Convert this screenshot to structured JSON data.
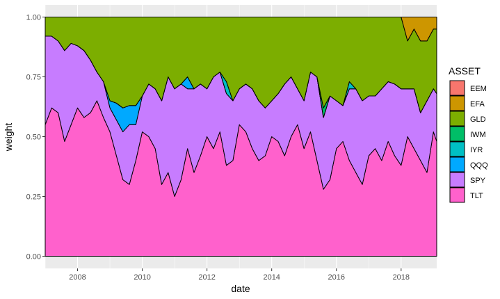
{
  "chart_data": {
    "type": "area",
    "stacked": true,
    "xlabel": "date",
    "ylabel": "weight",
    "xlim": [
      2007.0,
      2019.1
    ],
    "ylim": [
      0,
      1
    ],
    "x_ticks": [
      2008,
      2010,
      2012,
      2014,
      2016,
      2018
    ],
    "x_tick_labels": [
      "2008",
      "2010",
      "2012",
      "2014",
      "2016",
      "2018"
    ],
    "y_ticks": [
      0,
      0.25,
      0.5,
      0.75,
      1
    ],
    "y_tick_labels": [
      "0.00",
      "0.25",
      "0.50",
      "0.75",
      "1.00"
    ],
    "grid": true,
    "legend": {
      "title": "ASSET",
      "position": "right"
    },
    "x": [
      2007.0,
      2007.2,
      2007.4,
      2007.6,
      2007.8,
      2008.0,
      2008.2,
      2008.4,
      2008.6,
      2008.8,
      2009.0,
      2009.2,
      2009.4,
      2009.6,
      2009.8,
      2010.0,
      2010.2,
      2010.4,
      2010.6,
      2010.8,
      2011.0,
      2011.2,
      2011.4,
      2011.6,
      2011.8,
      2012.0,
      2012.2,
      2012.4,
      2012.6,
      2012.8,
      2013.0,
      2013.2,
      2013.4,
      2013.6,
      2013.8,
      2014.0,
      2014.2,
      2014.4,
      2014.6,
      2014.8,
      2015.0,
      2015.2,
      2015.4,
      2015.6,
      2015.8,
      2016.0,
      2016.2,
      2016.4,
      2016.6,
      2016.8,
      2017.0,
      2017.2,
      2017.4,
      2017.6,
      2017.8,
      2018.0,
      2018.2,
      2018.4,
      2018.6,
      2018.8,
      2019.0,
      2019.1
    ],
    "series": [
      {
        "name": "TLT",
        "color": "#FF61CC",
        "values": [
          0.55,
          0.62,
          0.6,
          0.48,
          0.55,
          0.62,
          0.58,
          0.6,
          0.65,
          0.58,
          0.52,
          0.42,
          0.32,
          0.3,
          0.4,
          0.52,
          0.5,
          0.45,
          0.3,
          0.35,
          0.25,
          0.32,
          0.45,
          0.35,
          0.42,
          0.5,
          0.45,
          0.52,
          0.38,
          0.4,
          0.55,
          0.52,
          0.45,
          0.4,
          0.42,
          0.5,
          0.48,
          0.42,
          0.5,
          0.55,
          0.45,
          0.52,
          0.4,
          0.28,
          0.32,
          0.45,
          0.48,
          0.4,
          0.35,
          0.3,
          0.42,
          0.45,
          0.4,
          0.48,
          0.42,
          0.38,
          0.5,
          0.45,
          0.4,
          0.35,
          0.52,
          0.48
        ]
      },
      {
        "name": "SPY",
        "color": "#C77CFF",
        "values": [
          0.37,
          0.3,
          0.3,
          0.38,
          0.34,
          0.26,
          0.28,
          0.22,
          0.12,
          0.15,
          0.1,
          0.15,
          0.2,
          0.25,
          0.15,
          0.15,
          0.22,
          0.25,
          0.35,
          0.4,
          0.45,
          0.4,
          0.25,
          0.35,
          0.3,
          0.2,
          0.3,
          0.25,
          0.3,
          0.25,
          0.15,
          0.2,
          0.25,
          0.25,
          0.2,
          0.15,
          0.2,
          0.3,
          0.25,
          0.15,
          0.2,
          0.25,
          0.35,
          0.3,
          0.35,
          0.2,
          0.15,
          0.3,
          0.35,
          0.35,
          0.25,
          0.22,
          0.3,
          0.25,
          0.3,
          0.32,
          0.2,
          0.25,
          0.2,
          0.3,
          0.18,
          0.2
        ]
      },
      {
        "name": "QQQ",
        "color": "#00A9FF",
        "values": [
          0,
          0,
          0,
          0,
          0,
          0,
          0,
          0,
          0,
          0,
          0.03,
          0.07,
          0.1,
          0.08,
          0.08,
          0,
          0,
          0,
          0,
          0,
          0,
          0,
          0.05,
          0,
          0,
          0,
          0,
          0,
          0,
          0,
          0,
          0,
          0,
          0,
          0,
          0,
          0,
          0,
          0,
          0,
          0,
          0,
          0,
          0,
          0,
          0,
          0,
          0,
          0,
          0,
          0,
          0,
          0,
          0,
          0,
          0,
          0,
          0,
          0,
          0,
          0,
          0
        ]
      },
      {
        "name": "IYR",
        "color": "#00BFC4",
        "values": [
          0,
          0,
          0,
          0,
          0,
          0,
          0,
          0,
          0,
          0,
          0,
          0,
          0,
          0,
          0,
          0,
          0,
          0,
          0,
          0,
          0,
          0,
          0,
          0,
          0,
          0,
          0,
          0,
          0.05,
          0,
          0,
          0,
          0,
          0,
          0,
          0,
          0,
          0,
          0,
          0,
          0,
          0,
          0,
          0,
          0,
          0,
          0,
          0.03,
          0,
          0,
          0,
          0,
          0,
          0,
          0,
          0,
          0,
          0,
          0,
          0,
          0,
          0
        ]
      },
      {
        "name": "IWM",
        "color": "#00BE67",
        "values": [
          0,
          0,
          0,
          0,
          0,
          0,
          0,
          0,
          0,
          0,
          0,
          0,
          0,
          0,
          0,
          0,
          0,
          0,
          0,
          0,
          0,
          0,
          0,
          0,
          0,
          0,
          0,
          0,
          0,
          0,
          0,
          0,
          0,
          0,
          0,
          0,
          0,
          0,
          0,
          0,
          0,
          0,
          0,
          0.04,
          0,
          0,
          0,
          0,
          0,
          0,
          0,
          0,
          0,
          0,
          0,
          0,
          0,
          0,
          0,
          0,
          0,
          0
        ]
      },
      {
        "name": "GLD",
        "color": "#7CAE00",
        "values": [
          0.08,
          0.08,
          0.1,
          0.14,
          0.11,
          0.12,
          0.14,
          0.18,
          0.23,
          0.27,
          0.35,
          0.36,
          0.38,
          0.37,
          0.37,
          0.33,
          0.28,
          0.3,
          0.35,
          0.25,
          0.3,
          0.28,
          0.25,
          0.3,
          0.28,
          0.3,
          0.25,
          0.23,
          0.27,
          0.35,
          0.3,
          0.28,
          0.3,
          0.35,
          0.38,
          0.35,
          0.32,
          0.28,
          0.25,
          0.3,
          0.35,
          0.23,
          0.25,
          0.38,
          0.33,
          0.35,
          0.37,
          0.27,
          0.3,
          0.35,
          0.33,
          0.33,
          0.3,
          0.27,
          0.28,
          0.3,
          0.2,
          0.25,
          0.3,
          0.25,
          0.25,
          0.27
        ]
      },
      {
        "name": "EFA",
        "color": "#CD9600",
        "values": [
          0,
          0,
          0,
          0,
          0,
          0,
          0,
          0,
          0,
          0,
          0,
          0,
          0,
          0,
          0,
          0,
          0,
          0,
          0,
          0,
          0,
          0,
          0,
          0,
          0,
          0,
          0,
          0,
          0,
          0,
          0,
          0,
          0,
          0,
          0,
          0,
          0,
          0,
          0,
          0,
          0,
          0,
          0,
          0,
          0,
          0,
          0,
          0,
          0,
          0,
          0,
          0,
          0,
          0,
          0,
          0,
          0.1,
          0.05,
          0.1,
          0.1,
          0.05,
          0.05
        ]
      },
      {
        "name": "EEM",
        "color": "#F8766D",
        "values": [
          0,
          0,
          0,
          0,
          0,
          0,
          0,
          0,
          0,
          0,
          0,
          0,
          0,
          0,
          0,
          0,
          0,
          0,
          0,
          0,
          0,
          0,
          0,
          0,
          0,
          0,
          0,
          0,
          0,
          0,
          0,
          0,
          0,
          0,
          0,
          0,
          0,
          0,
          0,
          0,
          0,
          0,
          0,
          0,
          0,
          0,
          0,
          0,
          0,
          0,
          0,
          0,
          0,
          0,
          0,
          0,
          0,
          0,
          0,
          0,
          0,
          0
        ]
      }
    ],
    "legend_order": [
      "EEM",
      "EFA",
      "GLD",
      "IWM",
      "IYR",
      "QQQ",
      "SPY",
      "TLT"
    ]
  }
}
